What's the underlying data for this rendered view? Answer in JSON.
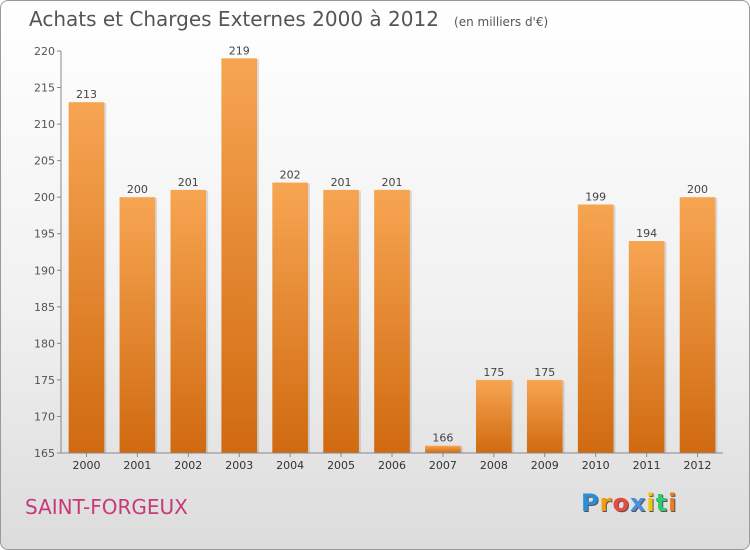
{
  "chart_data": {
    "type": "bar",
    "title": "Achats et Charges Externes 2000 à 2012",
    "subtitle": "(en milliers d'€)",
    "categories": [
      "2000",
      "2001",
      "2002",
      "2003",
      "2004",
      "2005",
      "2006",
      "2007",
      "2008",
      "2009",
      "2010",
      "2011",
      "2012"
    ],
    "values": [
      213,
      200,
      201,
      219,
      202,
      201,
      201,
      166,
      175,
      175,
      199,
      194,
      200
    ],
    "ylim": [
      165,
      220
    ],
    "yticks": [
      165,
      170,
      175,
      180,
      185,
      190,
      195,
      200,
      205,
      210,
      215,
      220
    ],
    "grid": false,
    "legend": "none",
    "bar_color_top": "#f7a552",
    "bar_color_bottom": "#d06a10"
  },
  "commune": "SAINT-FORGEUX",
  "logo": {
    "text": "Proxiti",
    "letters": [
      "P",
      "r",
      "o",
      "x",
      "i",
      "t",
      "i"
    ],
    "colors": [
      "#2a8fd4",
      "#f39c12",
      "#e74c3c",
      "#4a90d9",
      "#f1c40f",
      "#2ecc71",
      "#e67e22"
    ]
  }
}
